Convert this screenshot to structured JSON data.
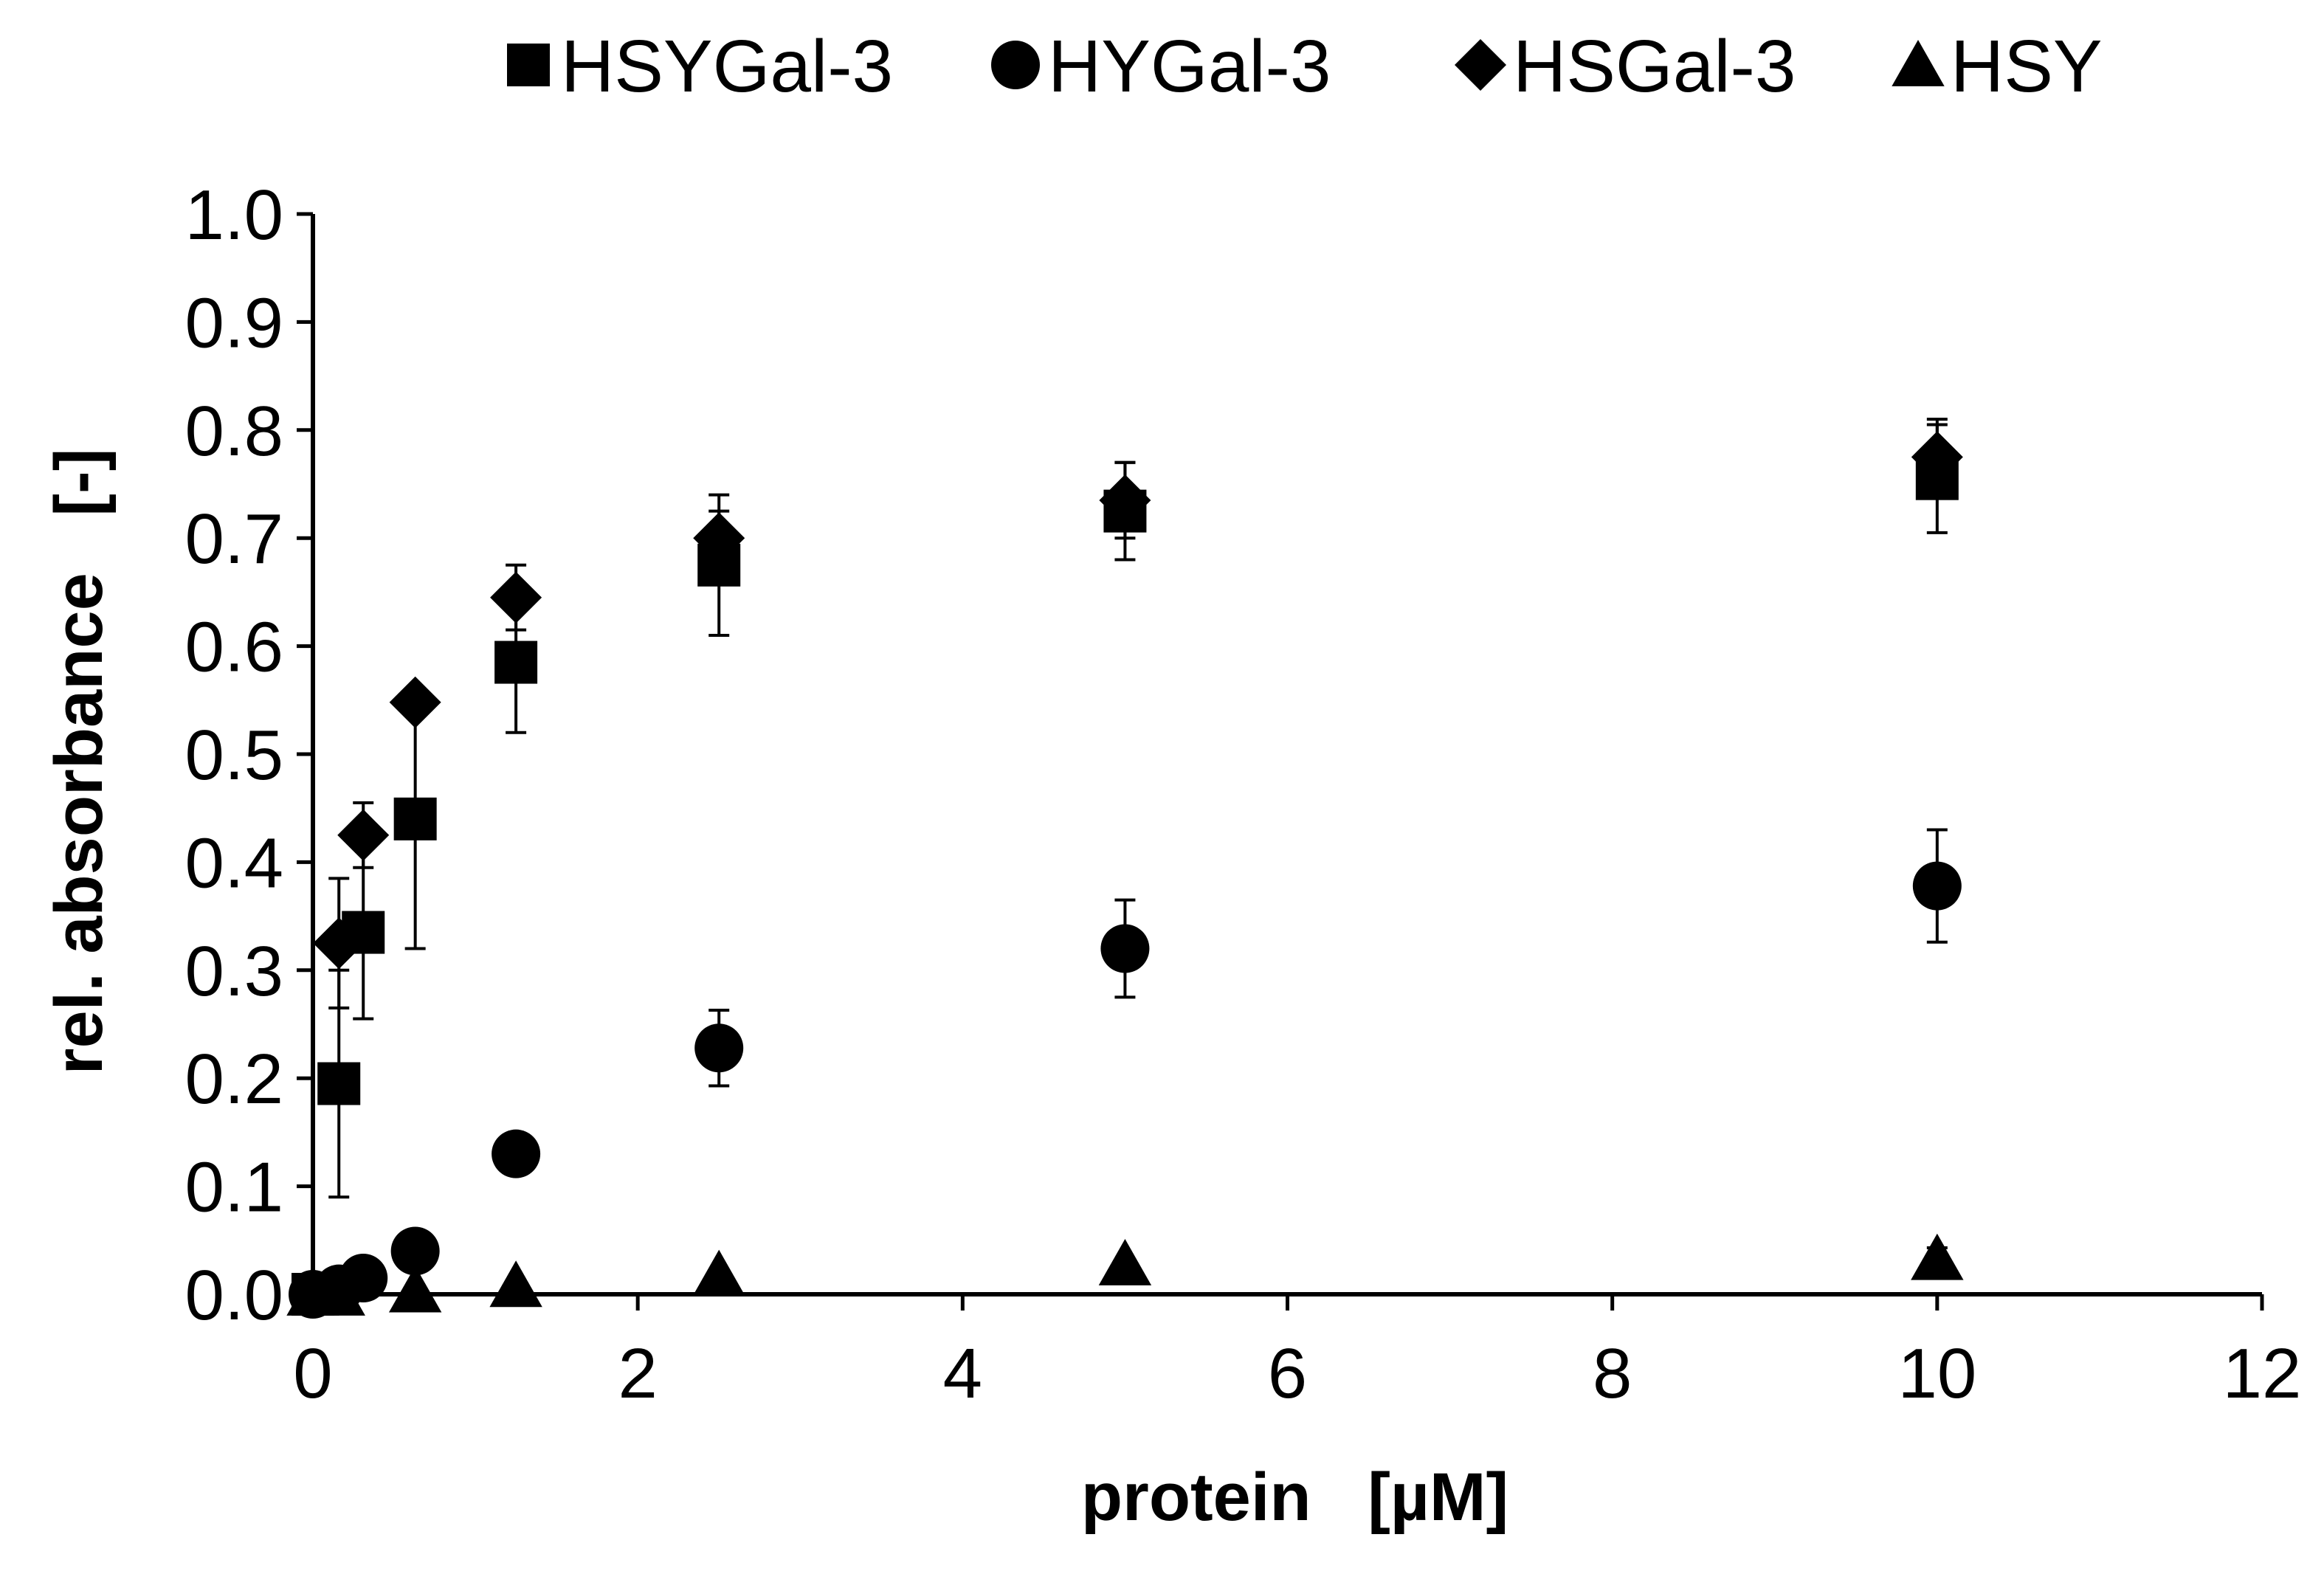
{
  "chart_data": {
    "type": "scatter",
    "title": "",
    "xlabel": "protein   [µM]",
    "ylabel": "rel. absorbance   [-]",
    "xlim": [
      0,
      12
    ],
    "ylim": [
      0,
      1.0
    ],
    "x_ticks": [
      "0",
      "2",
      "4",
      "6",
      "8",
      "10",
      "12"
    ],
    "y_ticks": [
      "0.0",
      "0.1",
      "0.2",
      "0.3",
      "0.4",
      "0.5",
      "0.6",
      "0.7",
      "0.8",
      "0.9",
      "1.0"
    ],
    "grid": false,
    "legend_position": "top",
    "series": [
      {
        "name": "HSYGal-3",
        "marker": "square",
        "points": [
          {
            "x": 0,
            "y": 0.0,
            "err": 0
          },
          {
            "x": 0.16,
            "y": 0.195,
            "err": 0.105
          },
          {
            "x": 0.31,
            "y": 0.335,
            "err": 0.08
          },
          {
            "x": 0.63,
            "y": 0.44,
            "err": 0.12
          },
          {
            "x": 1.25,
            "y": 0.585,
            "err": 0.065
          },
          {
            "x": 2.5,
            "y": 0.675,
            "err": 0.065
          },
          {
            "x": 5,
            "y": 0.725,
            "err": 0.045
          },
          {
            "x": 10,
            "y": 0.755,
            "err": 0.05
          }
        ]
      },
      {
        "name": "HYGal-3",
        "marker": "circle",
        "points": [
          {
            "x": 0,
            "y": 0.0,
            "err": 0
          },
          {
            "x": 0.16,
            "y": 0.005,
            "err": 0
          },
          {
            "x": 0.31,
            "y": 0.015,
            "err": 0
          },
          {
            "x": 0.63,
            "y": 0.04,
            "err": 0
          },
          {
            "x": 1.25,
            "y": 0.13,
            "err": 0.015
          },
          {
            "x": 2.5,
            "y": 0.228,
            "err": 0.035
          },
          {
            "x": 5,
            "y": 0.32,
            "err": 0.045
          },
          {
            "x": 10,
            "y": 0.378,
            "err": 0.052
          }
        ]
      },
      {
        "name": "HSGal-3",
        "marker": "diamond",
        "points": [
          {
            "x": 0.16,
            "y": 0.325,
            "err": 0.06
          },
          {
            "x": 0.31,
            "y": 0.425,
            "err": 0.03
          },
          {
            "x": 0.63,
            "y": 0.548,
            "err": 0
          },
          {
            "x": 1.25,
            "y": 0.645,
            "err": 0.03
          },
          {
            "x": 2.5,
            "y": 0.7,
            "err": 0.025
          },
          {
            "x": 5,
            "y": 0.735,
            "err": 0.035
          },
          {
            "x": 10,
            "y": 0.775,
            "err": 0.035
          }
        ]
      },
      {
        "name": "HSY",
        "marker": "triangle",
        "points": [
          {
            "x": 0,
            "y": 0.0,
            "err": 0
          },
          {
            "x": 0.16,
            "y": 0.0,
            "err": 0
          },
          {
            "x": 0.63,
            "y": 0.003,
            "err": 0
          },
          {
            "x": 1.25,
            "y": 0.008,
            "err": 0
          },
          {
            "x": 2.5,
            "y": 0.018,
            "err": 0
          },
          {
            "x": 5,
            "y": 0.028,
            "err": 0
          },
          {
            "x": 10,
            "y": 0.033,
            "err": 0.01
          }
        ]
      }
    ]
  }
}
